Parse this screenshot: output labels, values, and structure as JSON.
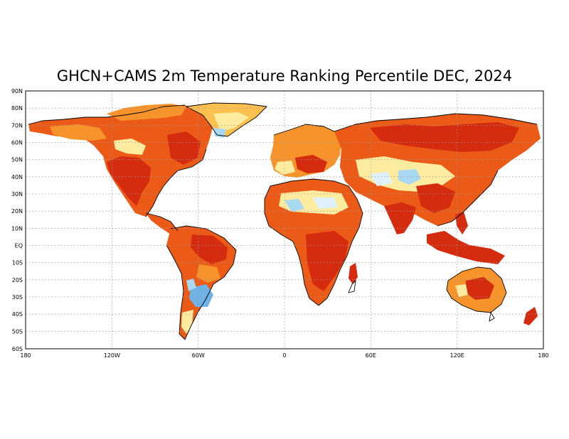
{
  "title": "GHCN+CAMS 2m Temperature Ranking Percentile DEC, 2024",
  "y_ticks": [
    "90N",
    "80N",
    "70N",
    "60N",
    "50N",
    "40N",
    "30N",
    "20N",
    "10N",
    "EQ",
    "10S",
    "20S",
    "30S",
    "40S",
    "50S",
    "60S"
  ],
  "x_ticks": [
    "180",
    "120W",
    "60W",
    "0",
    "60E",
    "120E",
    "180"
  ],
  "colors": {
    "very_warm": "#d52b0f",
    "warm": "#ec5a17",
    "above": "#f6932a",
    "slightly_above": "#fcc04f",
    "near": "#fdeca0",
    "slightly_below": "#dff2fb",
    "below": "#a9d8f3",
    "cold": "#6fb2e6",
    "grid": "#9a9a9a",
    "coast": "#000000"
  }
}
